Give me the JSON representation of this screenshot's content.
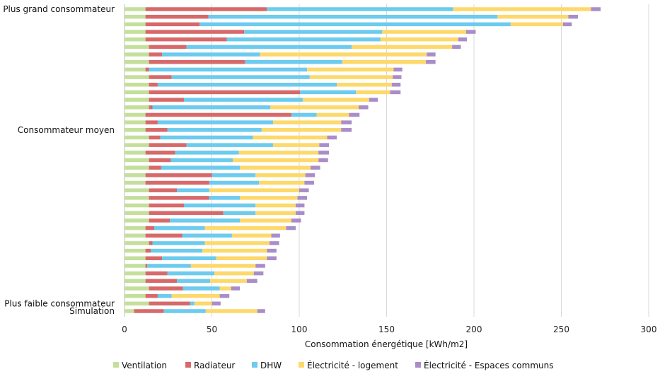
{
  "chart_data": {
    "type": "bar",
    "orientation": "horizontal",
    "stacked": true,
    "title": "",
    "xlabel": "Consommation énergétique [kWh/m2]",
    "ylabel": "",
    "xlim": [
      0,
      300
    ],
    "xticks": [
      0,
      50,
      100,
      150,
      200,
      250,
      300
    ],
    "grid": true,
    "legend_position": "bottom",
    "category_labels": [
      {
        "row": 0,
        "text": "Plus grand consommateur"
      },
      {
        "row": 16,
        "text": "Consommateur moyen"
      },
      {
        "row": 39,
        "text": "Plus faible consommateur"
      },
      {
        "row": 40,
        "text": "Simulation"
      }
    ],
    "series": [
      {
        "name": "Ventilation",
        "color": "#C4DF9B"
      },
      {
        "name": "Radiateur",
        "color": "#D7696A"
      },
      {
        "name": "DHW",
        "color": "#6CCBEE"
      },
      {
        "name": "Électricité - logement",
        "color": "#FDD96B"
      },
      {
        "name": "Électricité - Espaces communs",
        "color": "#A98DC9"
      }
    ],
    "rows_cumulative_note": "each row lists cumulative end values of the 5 stacked segments",
    "rows": [
      [
        12,
        81.5,
        188,
        267,
        272.5
      ],
      [
        12,
        48,
        213.5,
        254,
        259.5
      ],
      [
        12,
        43,
        221,
        251,
        256
      ],
      [
        12,
        68.5,
        147.5,
        195.5,
        201
      ],
      [
        12,
        58.5,
        146.5,
        191,
        196
      ],
      [
        14,
        35.5,
        130,
        187.5,
        192.5
      ],
      [
        14,
        21.5,
        77.5,
        173,
        178
      ],
      [
        14,
        69,
        124.5,
        172.5,
        178
      ],
      [
        12,
        14,
        104.5,
        154,
        159
      ],
      [
        14,
        27,
        106,
        153.5,
        158.5
      ],
      [
        14,
        19,
        121.5,
        153,
        158
      ],
      [
        14,
        100.5,
        132.5,
        152,
        158
      ],
      [
        14,
        34,
        102,
        140,
        145
      ],
      [
        14,
        16,
        83.5,
        134,
        139.5
      ],
      [
        12,
        95.5,
        110,
        128.5,
        134.5
      ],
      [
        12,
        19,
        85,
        124,
        130
      ],
      [
        12,
        24.5,
        78.5,
        124,
        130
      ],
      [
        14,
        20.5,
        73.5,
        116,
        121.5
      ],
      [
        14,
        35.5,
        85,
        111.5,
        117
      ],
      [
        12,
        29,
        65.5,
        111,
        117
      ],
      [
        14,
        26.5,
        62,
        111,
        116.5
      ],
      [
        14,
        21,
        66,
        106.5,
        112
      ],
      [
        12,
        50,
        75,
        103.5,
        109
      ],
      [
        12,
        48.5,
        77,
        103,
        108.5
      ],
      [
        14,
        30,
        48.5,
        100,
        105.5
      ],
      [
        14,
        48.5,
        66,
        99,
        104.5
      ],
      [
        14,
        34,
        75,
        98,
        103
      ],
      [
        14,
        56.5,
        75,
        98,
        103
      ],
      [
        14,
        26,
        66,
        95.5,
        101
      ],
      [
        12,
        17,
        46,
        92.5,
        98
      ],
      [
        12,
        33,
        61.5,
        84,
        89
      ],
      [
        14,
        16,
        46,
        83,
        88.5
      ],
      [
        12,
        15,
        44.5,
        81.5,
        87
      ],
      [
        12,
        21.5,
        52.5,
        81.5,
        87
      ],
      [
        12,
        13,
        38,
        75,
        80.5
      ],
      [
        12,
        24.5,
        51.5,
        74,
        79.5
      ],
      [
        12,
        30,
        49,
        70,
        76
      ],
      [
        14,
        33.5,
        54.5,
        61,
        66
      ],
      [
        12,
        19,
        27,
        54.5,
        60
      ],
      [
        14,
        37.5,
        40,
        50,
        55
      ],
      [
        5.5,
        22.5,
        46.5,
        76,
        80.5
      ]
    ]
  }
}
